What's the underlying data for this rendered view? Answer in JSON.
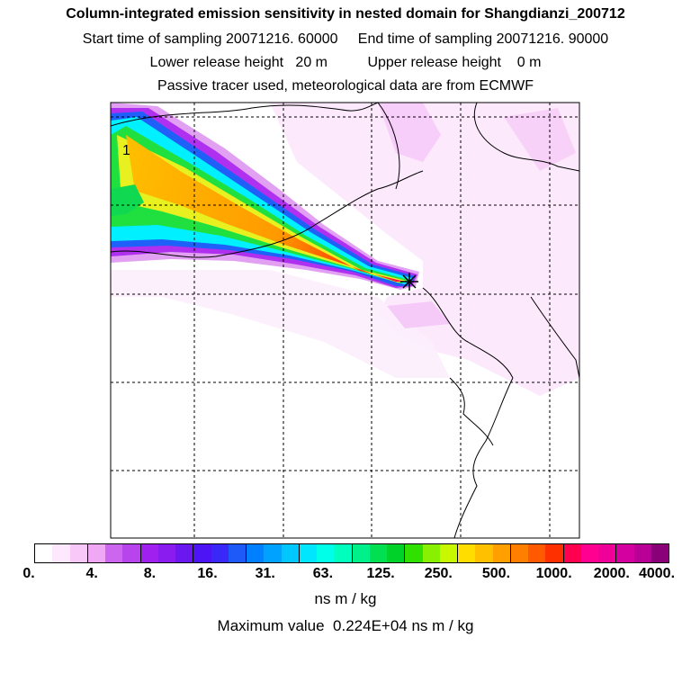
{
  "header": {
    "title": "Column-integrated emission sensitivity in nested domain for Shangdianzi_200712",
    "sampling_line": "Start time of sampling 20071216. 60000     End time of sampling 20071216. 90000",
    "release_line": "Lower release height   20 m          Upper release height    0 m",
    "tracer_line": "Passive tracer used, meteorological data are from ECMWF"
  },
  "map": {
    "contour_label": "1",
    "receptor_marker": "star-cross"
  },
  "colorbar": {
    "ticks": [
      "0.",
      "4.",
      "8.",
      "16.",
      "31.",
      "63.",
      "125.",
      "250.",
      "500.",
      "1000.",
      "2000.",
      "4000."
    ],
    "colors": [
      "#ffffff",
      "#fde8fd",
      "#f8c8f8",
      "#f0a8f5",
      "#cc66ee",
      "#b844ee",
      "#a020f0",
      "#8a1cf0",
      "#6b18f0",
      "#4f14f5",
      "#3a28f7",
      "#1e5af8",
      "#0080ff",
      "#00a2ff",
      "#00c8ff",
      "#00e6ff",
      "#00ffe8",
      "#00ffbd",
      "#00f08a",
      "#00e050",
      "#00d22a",
      "#30e000",
      "#88f000",
      "#c8f800",
      "#ffdd00",
      "#ffc000",
      "#ffa000",
      "#ff8000",
      "#ff5a00",
      "#ff3000",
      "#ff0050",
      "#ff0090",
      "#ee0099",
      "#d400a0",
      "#b80096",
      "#8a0078"
    ],
    "units": "ns m / kg",
    "max_value_line": "Maximum value  0.224E+04 ns m / kg"
  }
}
